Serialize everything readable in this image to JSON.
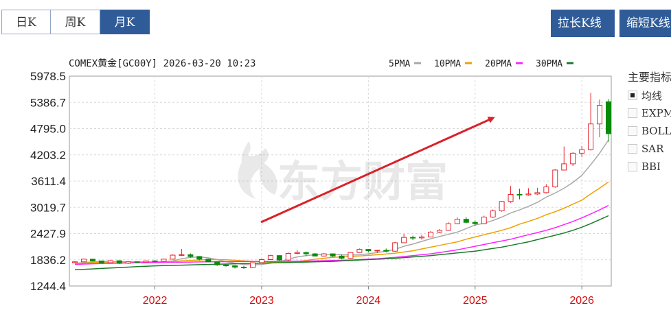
{
  "tabs": [
    {
      "label": "日K",
      "active": false
    },
    {
      "label": "周K",
      "active": false
    },
    {
      "label": "月K",
      "active": true
    }
  ],
  "buttons": {
    "stretch": "拉长K线",
    "shrink": "缩短K线"
  },
  "indicators": {
    "title": "主要指标",
    "items": [
      {
        "label": "均线",
        "checked": true
      },
      {
        "label": "EXPMA",
        "checked": false
      },
      {
        "label": "BOLL",
        "checked": false
      },
      {
        "label": "SAR",
        "checked": false
      },
      {
        "label": "BBI",
        "checked": false
      }
    ]
  },
  "watermark": "东方财富",
  "colors": {
    "up": "#e8232b",
    "down": "#0a8a0a",
    "arrow": "#d9222a",
    "xtick": "#d01010",
    "tab_active": "#2f5c99"
  },
  "chart_data": {
    "type": "candlestick",
    "title": "COMEX黄金[GC00Y] 2026-03-20 10:23",
    "ylim": [
      1244.4,
      5978.5
    ],
    "yticks": [
      "5978.5",
      "5386.7",
      "4795.0",
      "4203.2",
      "3611.4",
      "3019.7",
      "2427.9",
      "1836.2",
      "1244.4"
    ],
    "xticks": [
      {
        "label": "2022",
        "x": "2022-01"
      },
      {
        "label": "2023",
        "x": "2023-01"
      },
      {
        "label": "2024",
        "x": "2024-01"
      },
      {
        "label": "2025",
        "x": "2025-01"
      },
      {
        "label": "2026",
        "x": "2026-01"
      }
    ],
    "legend": [
      {
        "name": "5PMA",
        "color": "#a8a8a8"
      },
      {
        "name": "10PMA",
        "color": "#f0a000"
      },
      {
        "name": "20PMA",
        "color": "#ff22ff"
      },
      {
        "name": "30PMA",
        "color": "#1a7a2a"
      }
    ],
    "x_start": "2021-04",
    "candles": [
      [
        1770,
        1800,
        1760,
        1790
      ],
      [
        1790,
        1860,
        1780,
        1850
      ],
      [
        1850,
        1855,
        1800,
        1810
      ],
      [
        1810,
        1815,
        1760,
        1770
      ],
      [
        1770,
        1830,
        1765,
        1815
      ],
      [
        1815,
        1820,
        1740,
        1755
      ],
      [
        1755,
        1800,
        1740,
        1790
      ],
      [
        1790,
        1800,
        1770,
        1785
      ],
      [
        1785,
        1820,
        1760,
        1810
      ],
      [
        1810,
        1830,
        1790,
        1800
      ],
      [
        1800,
        1860,
        1790,
        1850
      ],
      [
        1850,
        1960,
        1840,
        1940
      ],
      [
        1940,
        2080,
        1920,
        1950
      ],
      [
        1950,
        1980,
        1880,
        1910
      ],
      [
        1910,
        1920,
        1820,
        1850
      ],
      [
        1850,
        1860,
        1780,
        1790
      ],
      [
        1790,
        1800,
        1700,
        1720
      ],
      [
        1720,
        1740,
        1680,
        1700
      ],
      [
        1700,
        1720,
        1640,
        1670
      ],
      [
        1670,
        1700,
        1630,
        1660
      ],
      [
        1660,
        1780,
        1650,
        1770
      ],
      [
        1770,
        1860,
        1760,
        1840
      ],
      [
        1840,
        1950,
        1830,
        1930
      ],
      [
        1930,
        1940,
        1800,
        1830
      ],
      [
        1830,
        2000,
        1810,
        1980
      ],
      [
        1980,
        2060,
        1960,
        2000
      ],
      [
        2000,
        2020,
        1920,
        1970
      ],
      [
        1970,
        1990,
        1910,
        1920
      ],
      [
        1920,
        1990,
        1910,
        1970
      ],
      [
        1970,
        1980,
        1900,
        1920
      ],
      [
        1920,
        1950,
        1850,
        1870
      ],
      [
        1870,
        2010,
        1860,
        2000
      ],
      [
        2000,
        2090,
        1990,
        2070
      ],
      [
        2070,
        2080,
        2000,
        2040
      ],
      [
        2040,
        2060,
        1990,
        2050
      ],
      [
        2050,
        2090,
        2000,
        2030
      ],
      [
        2030,
        2240,
        2020,
        2220
      ],
      [
        2220,
        2420,
        2210,
        2340
      ],
      [
        2340,
        2380,
        2280,
        2330
      ],
      [
        2330,
        2400,
        2290,
        2350
      ],
      [
        2350,
        2480,
        2340,
        2460
      ],
      [
        2460,
        2530,
        2440,
        2500
      ],
      [
        2500,
        2680,
        2490,
        2650
      ],
      [
        2650,
        2790,
        2640,
        2750
      ],
      [
        2750,
        2800,
        2660,
        2680
      ],
      [
        2680,
        2720,
        2600,
        2650
      ],
      [
        2650,
        2830,
        2640,
        2800
      ],
      [
        2800,
        2970,
        2780,
        2940
      ],
      [
        2940,
        3160,
        2920,
        3150
      ],
      [
        3150,
        3500,
        3120,
        3310
      ],
      [
        3310,
        3440,
        3200,
        3300
      ],
      [
        3300,
        3450,
        3280,
        3320
      ],
      [
        3320,
        3460,
        3300,
        3350
      ],
      [
        3350,
        3540,
        3330,
        3480
      ],
      [
        3480,
        3880,
        3460,
        3860
      ],
      [
        3860,
        4390,
        3850,
        4000
      ],
      [
        4000,
        4260,
        3950,
        4240
      ],
      [
        4240,
        4400,
        4150,
        4320
      ],
      [
        4320,
        5600,
        4300,
        4900
      ],
      [
        4900,
        5450,
        4600,
        5320
      ],
      [
        5400,
        5460,
        4500,
        4680
      ]
    ],
    "ma_series": [
      {
        "name": "5PMA",
        "values": [
          1760,
          1770,
          1790,
          1800,
          1800,
          1790,
          1780,
          1770,
          1775,
          1780,
          1790,
          1810,
          1860,
          1890,
          1900,
          1880,
          1840,
          1790,
          1760,
          1730,
          1720,
          1730,
          1760,
          1790,
          1850,
          1900,
          1930,
          1950,
          1960,
          1960,
          1950,
          1940,
          1950,
          1970,
          2000,
          2030,
          2070,
          2140,
          2190,
          2250,
          2310,
          2360,
          2410,
          2460,
          2540,
          2620,
          2660,
          2720,
          2800,
          2890,
          2960,
          3040,
          3130,
          3250,
          3340,
          3450,
          3580,
          3740,
          3980,
          4240,
          4540
        ]
      },
      {
        "name": "10PMA",
        "values": [
          1750,
          1760,
          1770,
          1780,
          1785,
          1790,
          1790,
          1790,
          1790,
          1790,
          1795,
          1800,
          1810,
          1820,
          1830,
          1840,
          1840,
          1835,
          1825,
          1810,
          1800,
          1790,
          1790,
          1785,
          1790,
          1800,
          1820,
          1850,
          1870,
          1890,
          1900,
          1910,
          1920,
          1935,
          1950,
          1965,
          1985,
          2010,
          2040,
          2080,
          2120,
          2160,
          2200,
          2240,
          2300,
          2350,
          2400,
          2450,
          2500,
          2560,
          2640,
          2700,
          2770,
          2850,
          2920,
          3000,
          3090,
          3180,
          3320,
          3450,
          3590
        ]
      },
      {
        "name": "20PMA",
        "values": [
          1730,
          1740,
          1745,
          1750,
          1755,
          1760,
          1765,
          1770,
          1772,
          1775,
          1778,
          1780,
          1782,
          1785,
          1788,
          1790,
          1792,
          1794,
          1795,
          1796,
          1797,
          1798,
          1799,
          1800,
          1802,
          1804,
          1806,
          1810,
          1815,
          1820,
          1825,
          1830,
          1840,
          1850,
          1860,
          1875,
          1890,
          1910,
          1930,
          1950,
          1970,
          2000,
          2030,
          2060,
          2100,
          2140,
          2180,
          2220,
          2260,
          2300,
          2350,
          2400,
          2450,
          2500,
          2560,
          2630,
          2700,
          2780,
          2870,
          2960,
          3060
        ]
      },
      {
        "name": "30PMA",
        "values": [
          1610,
          1620,
          1630,
          1640,
          1650,
          1660,
          1670,
          1680,
          1690,
          1700,
          1705,
          1710,
          1715,
          1720,
          1725,
          1730,
          1735,
          1740,
          1745,
          1750,
          1755,
          1760,
          1765,
          1770,
          1775,
          1780,
          1785,
          1790,
          1795,
          1800,
          1810,
          1820,
          1830,
          1840,
          1850,
          1860,
          1870,
          1885,
          1900,
          1915,
          1930,
          1950,
          1970,
          1990,
          2010,
          2030,
          2060,
          2090,
          2120,
          2160,
          2200,
          2240,
          2290,
          2340,
          2390,
          2440,
          2500,
          2570,
          2650,
          2740,
          2830
        ]
      }
    ]
  }
}
